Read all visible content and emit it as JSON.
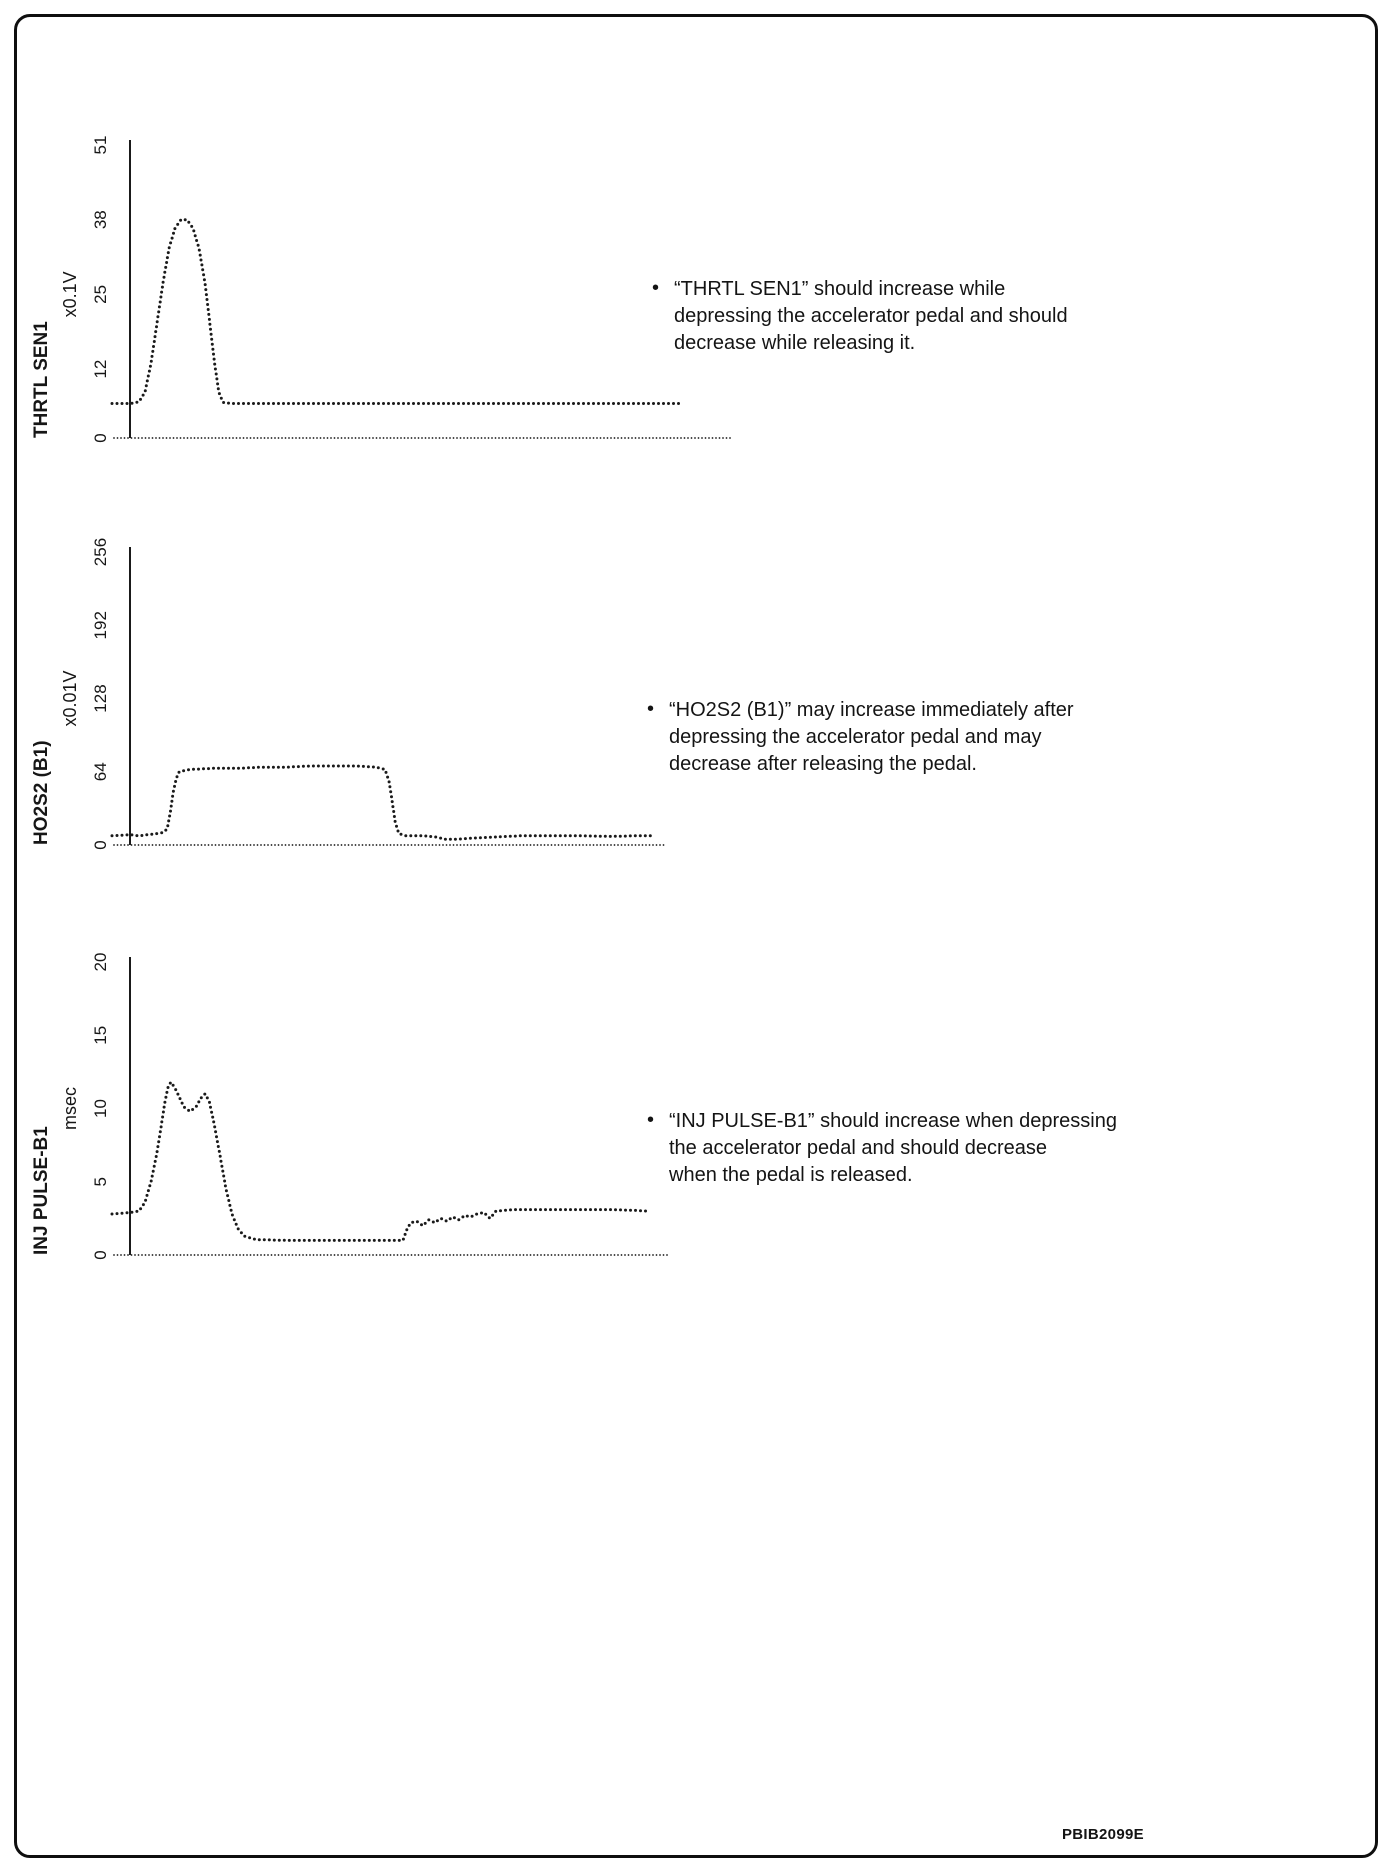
{
  "page": {
    "footer_code": "PBIB2099E"
  },
  "chart_data": [
    {
      "id": "thrtl-sen1",
      "type": "line",
      "style": "dotted",
      "ylabel": "THRTL SEN1",
      "unit": "x0.1V",
      "xlabel": "",
      "ylim": [
        0,
        51
      ],
      "yticks": [
        0,
        12,
        25,
        38,
        51
      ],
      "baseline_end": 1.0,
      "points": [
        [
          -0.03,
          6
        ],
        [
          -0.015,
          6
        ],
        [
          0,
          6
        ],
        [
          0.015,
          6.3
        ],
        [
          0.025,
          8
        ],
        [
          0.035,
          13
        ],
        [
          0.045,
          20
        ],
        [
          0.055,
          27
        ],
        [
          0.065,
          33
        ],
        [
          0.075,
          36.5
        ],
        [
          0.085,
          38
        ],
        [
          0.095,
          38
        ],
        [
          0.105,
          36.5
        ],
        [
          0.115,
          33
        ],
        [
          0.125,
          27
        ],
        [
          0.133,
          20
        ],
        [
          0.141,
          13
        ],
        [
          0.148,
          8
        ],
        [
          0.155,
          6.2
        ],
        [
          0.17,
          6
        ],
        [
          0.3,
          6
        ],
        [
          0.5,
          6
        ],
        [
          0.7,
          6
        ],
        [
          0.85,
          6
        ],
        [
          0.92,
          6
        ]
      ],
      "note_lines": [
        "“THRTL SEN1” should increase while",
        "depressing the accelerator pedal and should",
        "decrease while releasing it."
      ]
    },
    {
      "id": "ho2s2-b1",
      "type": "line",
      "style": "dotted",
      "ylabel": "HO2S2 (B1)",
      "unit": "x0.01V",
      "xlabel": "",
      "ylim": [
        0,
        256
      ],
      "yticks": [
        0,
        64,
        128,
        192,
        256
      ],
      "baseline_end": 0.89,
      "points": [
        [
          -0.03,
          8
        ],
        [
          0,
          9
        ],
        [
          0.015,
          8
        ],
        [
          0.03,
          9
        ],
        [
          0.045,
          10
        ],
        [
          0.055,
          11
        ],
        [
          0.062,
          14
        ],
        [
          0.067,
          28
        ],
        [
          0.072,
          46
        ],
        [
          0.077,
          58
        ],
        [
          0.082,
          64
        ],
        [
          0.1,
          66
        ],
        [
          0.14,
          67
        ],
        [
          0.18,
          67
        ],
        [
          0.22,
          68
        ],
        [
          0.26,
          68
        ],
        [
          0.3,
          69
        ],
        [
          0.34,
          69
        ],
        [
          0.38,
          69
        ],
        [
          0.41,
          68
        ],
        [
          0.425,
          66
        ],
        [
          0.432,
          55
        ],
        [
          0.437,
          38
        ],
        [
          0.442,
          20
        ],
        [
          0.448,
          10
        ],
        [
          0.46,
          8
        ],
        [
          0.49,
          8
        ],
        [
          0.51,
          7
        ],
        [
          0.525,
          5
        ],
        [
          0.545,
          5
        ],
        [
          0.57,
          6
        ],
        [
          0.61,
          7
        ],
        [
          0.65,
          8
        ],
        [
          0.7,
          8
        ],
        [
          0.75,
          8
        ],
        [
          0.8,
          7.5
        ],
        [
          0.84,
          8
        ],
        [
          0.87,
          8
        ]
      ],
      "note_lines": [
        "“HO2S2 (B1)” may increase immediately after",
        "depressing the accelerator pedal and may",
        "decrease after releasing the pedal."
      ]
    },
    {
      "id": "inj-pulse-b1",
      "type": "line",
      "style": "dotted",
      "ylabel": "INJ PULSE-B1",
      "unit": "msec",
      "xlabel": "",
      "ylim": [
        0,
        20
      ],
      "yticks": [
        0,
        5,
        10,
        15,
        20
      ],
      "baseline_end": 0.9,
      "points": [
        [
          -0.03,
          2.8
        ],
        [
          0,
          2.9
        ],
        [
          0.015,
          3
        ],
        [
          0.025,
          3.6
        ],
        [
          0.035,
          5
        ],
        [
          0.045,
          7
        ],
        [
          0.052,
          8.8
        ],
        [
          0.058,
          10.4
        ],
        [
          0.063,
          11.4
        ],
        [
          0.068,
          11.8
        ],
        [
          0.075,
          11.4
        ],
        [
          0.083,
          10.7
        ],
        [
          0.09,
          10.1
        ],
        [
          0.1,
          9.8
        ],
        [
          0.11,
          10.1
        ],
        [
          0.118,
          10.7
        ],
        [
          0.125,
          11
        ],
        [
          0.132,
          10.5
        ],
        [
          0.14,
          9
        ],
        [
          0.15,
          6.8
        ],
        [
          0.16,
          4.5
        ],
        [
          0.17,
          2.8
        ],
        [
          0.18,
          1.8
        ],
        [
          0.19,
          1.3
        ],
        [
          0.21,
          1.05
        ],
        [
          0.26,
          1
        ],
        [
          0.32,
          1
        ],
        [
          0.38,
          1
        ],
        [
          0.44,
          1
        ],
        [
          0.455,
          1
        ],
        [
          0.462,
          1.8
        ],
        [
          0.468,
          2.2
        ],
        [
          0.478,
          2.3
        ],
        [
          0.488,
          2
        ],
        [
          0.498,
          2.4
        ],
        [
          0.508,
          2.2
        ],
        [
          0.518,
          2.5
        ],
        [
          0.528,
          2.3
        ],
        [
          0.538,
          2.6
        ],
        [
          0.548,
          2.4
        ],
        [
          0.558,
          2.7
        ],
        [
          0.568,
          2.6
        ],
        [
          0.578,
          2.8
        ],
        [
          0.59,
          2.9
        ],
        [
          0.6,
          2.5
        ],
        [
          0.61,
          3
        ],
        [
          0.64,
          3.1
        ],
        [
          0.68,
          3.1
        ],
        [
          0.72,
          3.1
        ],
        [
          0.76,
          3.1
        ],
        [
          0.8,
          3.1
        ],
        [
          0.84,
          3.05
        ],
        [
          0.86,
          3
        ]
      ],
      "note_lines": [
        "“INJ PULSE-B1” should increase when depressing",
        "the accelerator pedal and should decrease",
        "when the pedal is released."
      ]
    }
  ]
}
